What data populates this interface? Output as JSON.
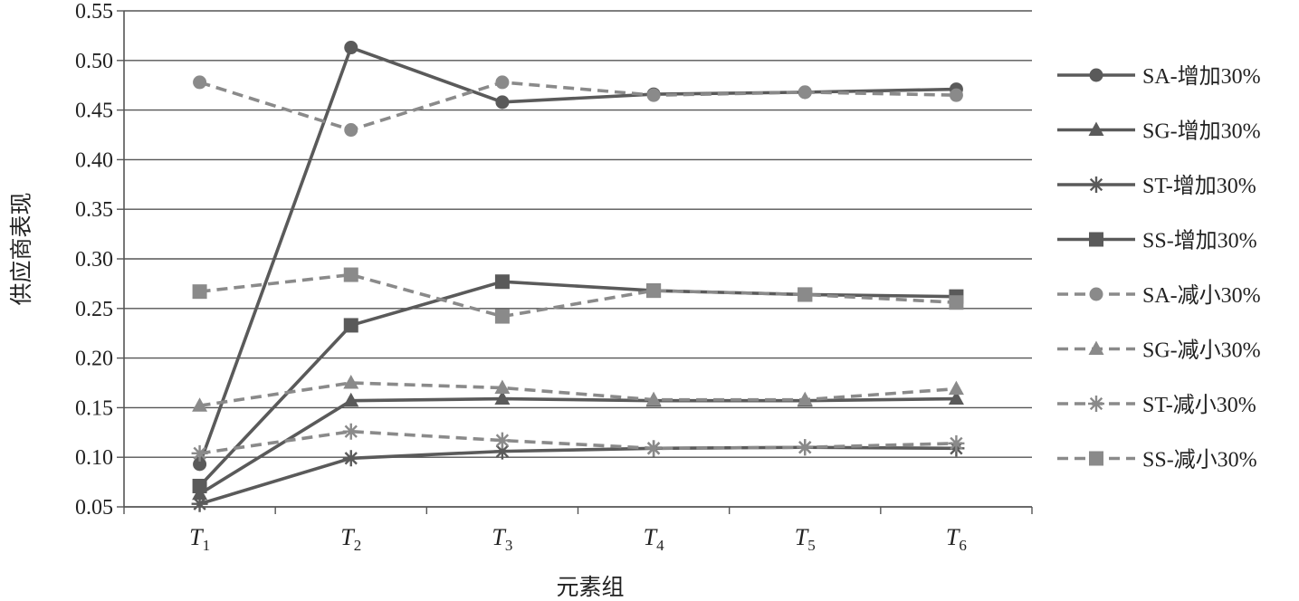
{
  "chart_data": {
    "type": "line",
    "xlabel": "元素组",
    "ylabel": "供应商表现",
    "categories": [
      {
        "main": "T",
        "sub": "1"
      },
      {
        "main": "T",
        "sub": "2"
      },
      {
        "main": "T",
        "sub": "3"
      },
      {
        "main": "T",
        "sub": "4"
      },
      {
        "main": "T",
        "sub": "5"
      },
      {
        "main": "T",
        "sub": "6"
      }
    ],
    "ylim": [
      0.05,
      0.55
    ],
    "yticks": [
      "0.05",
      "0.10",
      "0.15",
      "0.20",
      "0.25",
      "0.30",
      "0.35",
      "0.40",
      "0.45",
      "0.50",
      "0.55"
    ],
    "grid": true,
    "legend_position": "right",
    "series": [
      {
        "name": "SA-增加30%",
        "marker": "circle",
        "dash": false,
        "color": "#5a5a5a",
        "values": [
          0.093,
          0.513,
          0.458,
          0.466,
          0.468,
          0.471
        ]
      },
      {
        "name": "SG-增加30%",
        "marker": "triangle",
        "dash": false,
        "color": "#5a5a5a",
        "values": [
          0.063,
          0.157,
          0.159,
          0.157,
          0.157,
          0.159
        ]
      },
      {
        "name": "ST-增加30%",
        "marker": "star",
        "dash": false,
        "color": "#5a5a5a",
        "values": [
          0.053,
          0.099,
          0.106,
          0.109,
          0.11,
          0.109
        ]
      },
      {
        "name": "SS-增加30%",
        "marker": "square",
        "dash": false,
        "color": "#5a5a5a",
        "values": [
          0.071,
          0.233,
          0.277,
          0.268,
          0.264,
          0.262
        ]
      },
      {
        "name": "SA-减小30%",
        "marker": "circle",
        "dash": true,
        "color": "#8a8a8a",
        "values": [
          0.478,
          0.43,
          0.478,
          0.465,
          0.468,
          0.465
        ]
      },
      {
        "name": "SG-减小30%",
        "marker": "triangle",
        "dash": true,
        "color": "#8a8a8a",
        "values": [
          0.152,
          0.175,
          0.17,
          0.158,
          0.158,
          0.169
        ]
      },
      {
        "name": "ST-减小30%",
        "marker": "star",
        "dash": true,
        "color": "#8a8a8a",
        "values": [
          0.104,
          0.126,
          0.117,
          0.109,
          0.11,
          0.114
        ]
      },
      {
        "name": "SS-减小30%",
        "marker": "square",
        "dash": true,
        "color": "#8a8a8a",
        "values": [
          0.267,
          0.284,
          0.242,
          0.268,
          0.264,
          0.256
        ]
      }
    ]
  }
}
